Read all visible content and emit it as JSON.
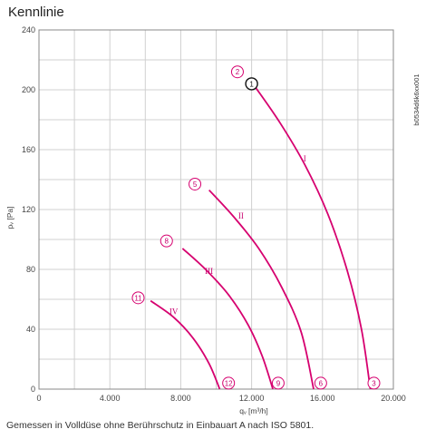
{
  "title": "Kennlinie",
  "caption": "Gemessen in Volldüse ohne Berührschutz in Einbauart A nach ISO 5801.",
  "doc_id": "b0534d6k6xx001",
  "colors": {
    "curve": "#d6006f",
    "grid": "#d0d0d0",
    "axis": "#888888",
    "text": "#333333"
  },
  "chart_data": {
    "type": "line",
    "xlabel": "qᵥ [m³/h]",
    "ylabel": "pᵥ [Pa]",
    "xlim": [
      0,
      20000
    ],
    "ylim": [
      0,
      240
    ],
    "x_ticks": [
      0,
      4000,
      8000,
      12000,
      16000,
      20000
    ],
    "x_tick_labels": [
      "0",
      "4.000",
      "8.000",
      "12.000",
      "16.000",
      "20.000"
    ],
    "y_ticks": [
      0,
      40,
      80,
      120,
      160,
      200,
      240
    ],
    "y_tick_labels": [
      "0",
      "40",
      "80",
      "120",
      "160",
      "200",
      "240"
    ],
    "grid": true,
    "series": [
      {
        "name": "I",
        "points": [
          [
            12200,
            202
          ],
          [
            13600,
            178
          ],
          [
            15000,
            150
          ],
          [
            16300,
            117
          ],
          [
            17400,
            79
          ],
          [
            18200,
            40
          ],
          [
            18700,
            0
          ]
        ]
      },
      {
        "name": "II",
        "points": [
          [
            9600,
            133
          ],
          [
            11000,
            115
          ],
          [
            12400,
            94
          ],
          [
            13700,
            68
          ],
          [
            14800,
            38
          ],
          [
            15500,
            0
          ]
        ]
      },
      {
        "name": "III",
        "points": [
          [
            8100,
            94
          ],
          [
            9400,
            80
          ],
          [
            10700,
            63
          ],
          [
            11800,
            43
          ],
          [
            12600,
            22
          ],
          [
            13200,
            0
          ]
        ]
      },
      {
        "name": "IV",
        "points": [
          [
            6300,
            59
          ],
          [
            7600,
            48
          ],
          [
            8700,
            34
          ],
          [
            9600,
            17
          ],
          [
            10200,
            0
          ]
        ]
      }
    ],
    "markers": [
      {
        "label": "1",
        "x": 12000,
        "y": 204,
        "style": "dark"
      },
      {
        "label": "2",
        "x": 11200,
        "y": 212,
        "style": "curve"
      },
      {
        "label": "3",
        "x": 18900,
        "y": 4,
        "style": "curve"
      },
      {
        "label": "5",
        "x": 8800,
        "y": 137,
        "style": "curve"
      },
      {
        "label": "6",
        "x": 15900,
        "y": 4,
        "style": "curve"
      },
      {
        "label": "8",
        "x": 7200,
        "y": 99,
        "style": "curve"
      },
      {
        "label": "9",
        "x": 13500,
        "y": 4,
        "style": "curve"
      },
      {
        "label": "11",
        "x": 5600,
        "y": 61,
        "style": "curve"
      },
      {
        "label": "12",
        "x": 10700,
        "y": 4,
        "style": "curve"
      }
    ],
    "curve_labels": [
      {
        "text": "I",
        "x": 15000,
        "y": 152
      },
      {
        "text": "II",
        "x": 11400,
        "y": 114
      },
      {
        "text": "III",
        "x": 9600,
        "y": 77
      },
      {
        "text": "IV",
        "x": 7600,
        "y": 50
      }
    ]
  }
}
